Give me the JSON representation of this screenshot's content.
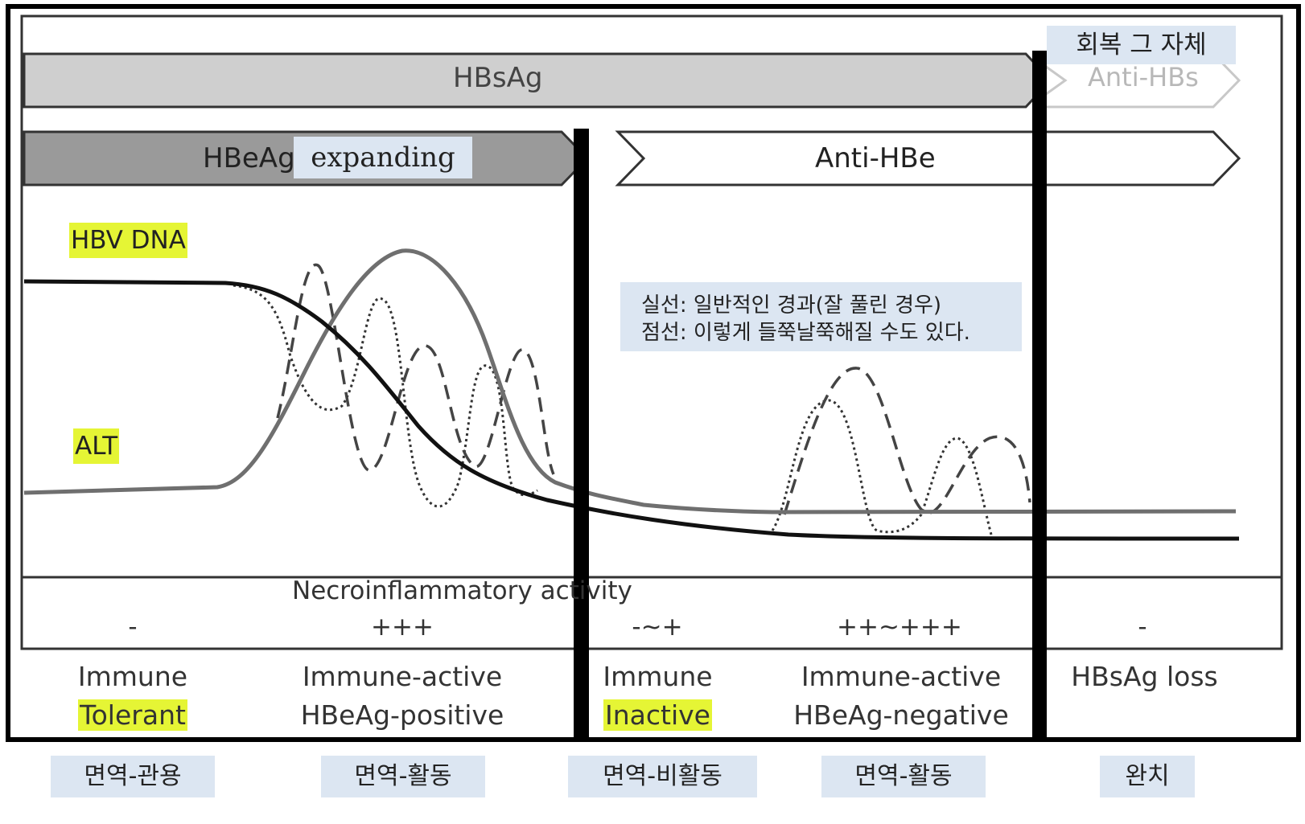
{
  "markers": {
    "hbsag": "HBsAg",
    "anti_hbs": "Anti-HBs",
    "hbeag": "HBeAg",
    "anti_hbe": "Anti-HBe"
  },
  "notes": {
    "expanding": "expanding",
    "recovery": "회복 그 자체",
    "legend_line1": "실선: 일반적인 경과(잘 풀린 경우)",
    "legend_line2": "점선: 이렇게 들쭉날쭉해질 수도 있다."
  },
  "curves": {
    "hbv_dna": "HBV DNA",
    "alt": "ALT"
  },
  "necro": {
    "title": "Necroinflammatory activity",
    "values": [
      "-",
      "+++",
      "-~+",
      "++~+++",
      "-"
    ]
  },
  "phases": [
    {
      "line1": "Immune",
      "line2": "Tolerant",
      "korean": "면역-관용"
    },
    {
      "line1": "Immune-active",
      "line2": "HBeAg-positive",
      "korean": "면역-활동"
    },
    {
      "line1": "Immune",
      "line2": "Inactive",
      "korean": "면역-비활동"
    },
    {
      "line1": "Immune-active",
      "line2": "HBeAg-negative",
      "korean": "면역-활동"
    },
    {
      "line1": "HBsAg loss",
      "line2": "",
      "korean": "완치"
    }
  ],
  "colors": {
    "highlight": "#e5f535",
    "korean_box": "#dce6f2",
    "hbsag_fill": "#cfcfcf",
    "hbeag_fill": "#9a9a9a"
  }
}
